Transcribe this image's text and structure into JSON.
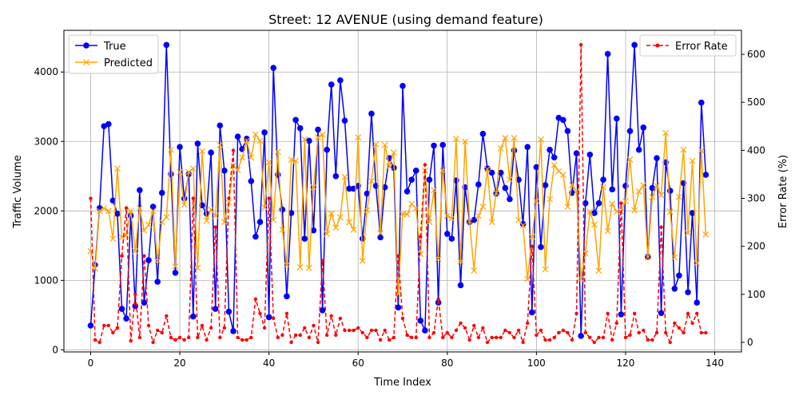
{
  "chart_data": {
    "type": "line",
    "title": "Street: 12 AVENUE (using demand feature)",
    "xlabel": "Time Index",
    "ylabel": "Traffic Volume",
    "y2label": "Error Rate (%)",
    "xlim": [
      -6,
      146
    ],
    "ylim": [
      -30,
      4600
    ],
    "y2lim": [
      -20,
      650
    ],
    "xticks": [
      0,
      20,
      40,
      60,
      80,
      100,
      120,
      140
    ],
    "yticks": [
      0,
      1000,
      2000,
      3000,
      4000
    ],
    "y2ticks": [
      0,
      100,
      200,
      300,
      400,
      500,
      600
    ],
    "grid": true,
    "legend_left_placement": "upper left",
    "legend_right_placement": "upper right",
    "series": [
      {
        "name": "True",
        "axis": "left",
        "color": "#0000ff",
        "marker": "circle",
        "values": [
          350,
          1220,
          2040,
          3220,
          3250,
          2150,
          1960,
          590,
          450,
          1930,
          630,
          2300,
          680,
          1290,
          2060,
          980,
          2260,
          4390,
          2530,
          1110,
          2920,
          2180,
          2530,
          480,
          2970,
          2080,
          1960,
          2840,
          590,
          3230,
          2580,
          550,
          270,
          3070,
          2890,
          3040,
          2430,
          1630,
          1840,
          3130,
          470,
          4060,
          2520,
          2020,
          770,
          1970,
          3310,
          3190,
          1600,
          3010,
          1720,
          3170,
          570,
          2880,
          3820,
          2500,
          3880,
          3300,
          2320,
          2320,
          2360,
          1600,
          2250,
          3400,
          2360,
          1620,
          2340,
          2760,
          2620,
          610,
          3800,
          2280,
          2450,
          2580,
          420,
          280,
          2450,
          2940,
          680,
          2950,
          1670,
          1600,
          2440,
          930,
          2340,
          1840,
          1870,
          2380,
          3110,
          2610,
          2550,
          2250,
          2550,
          2330,
          2170,
          2870,
          2450,
          1810,
          2920,
          540,
          2630,
          1480,
          2370,
          2880,
          2770,
          3340,
          3310,
          3150,
          2260,
          2830,
          200,
          2110,
          2810,
          1970,
          2110,
          2450,
          4260,
          2310,
          3330,
          510,
          2360,
          3150,
          4390,
          2880,
          3200,
          1340,
          2330,
          2760,
          530,
          2700,
          2290,
          880,
          1070,
          2400,
          830,
          1970,
          680,
          3560,
          2520
        ]
      },
      {
        "name": "Predicted",
        "axis": "left",
        "color": "#ffa500",
        "marker": "x",
        "values": [
          1420,
          1170,
          2000,
          2040,
          2000,
          1600,
          2610,
          1620,
          1650,
          2000,
          1420,
          2040,
          1720,
          1800,
          2000,
          1280,
          1840,
          1910,
          2880,
          1200,
          2560,
          2090,
          2560,
          2610,
          1180,
          2860,
          1860,
          2020,
          1930,
          2950,
          1840,
          2120,
          2650,
          2590,
          2770,
          3010,
          2770,
          3100,
          3010,
          2050,
          2700,
          1870,
          2850,
          1730,
          1220,
          2740,
          2720,
          1190,
          3030,
          1180,
          2340,
          3060,
          3100,
          1670,
          1960,
          1760,
          1910,
          2490,
          1840,
          1730,
          3060,
          1280,
          2010,
          2430,
          2960,
          1680,
          2950,
          2640,
          2840,
          800,
          1960,
          1950,
          2100,
          2040,
          1380,
          2580,
          1840,
          2300,
          1310,
          2580,
          1930,
          1890,
          3040,
          1270,
          3000,
          1850,
          1140,
          1930,
          2060,
          2600,
          1840,
          2260,
          2900,
          3050,
          2450,
          3050,
          1870,
          1790,
          1020,
          1630,
          2140,
          3030,
          1160,
          2170,
          2660,
          2570,
          2520,
          2060,
          2370,
          2280,
          1020,
          1390,
          1990,
          1800,
          1140,
          2340,
          1710,
          2100,
          1990,
          1990,
          2140,
          2740,
          2010,
          2280,
          2370,
          1330,
          2200,
          2360,
          2230,
          3120,
          1990,
          1330,
          2200,
          2880,
          1680,
          2720,
          1250,
          2870,
          1660
        ]
      },
      {
        "name": "Error Rate",
        "axis": "right",
        "color": "#ff0000",
        "marker": "circle",
        "style": "dashed",
        "values": [
          300,
          5,
          0,
          35,
          35,
          20,
          30,
          180,
          280,
          3,
          100,
          10,
          180,
          35,
          0,
          25,
          20,
          55,
          10,
          5,
          10,
          5,
          10,
          300,
          10,
          35,
          5,
          30,
          240,
          10,
          30,
          300,
          400,
          10,
          5,
          5,
          10,
          90,
          60,
          30,
          300,
          50,
          10,
          15,
          60,
          0,
          15,
          15,
          30,
          10,
          35,
          0,
          170,
          15,
          55,
          15,
          50,
          25,
          25,
          25,
          30,
          20,
          10,
          25,
          25,
          5,
          25,
          5,
          10,
          180,
          50,
          15,
          10,
          10,
          220,
          370,
          10,
          20,
          90,
          10,
          20,
          10,
          25,
          40,
          30,
          5,
          35,
          10,
          30,
          0,
          10,
          10,
          10,
          25,
          20,
          10,
          25,
          0,
          40,
          200,
          15,
          25,
          5,
          5,
          10,
          20,
          25,
          20,
          5,
          60,
          620,
          20,
          10,
          0,
          10,
          10,
          60,
          5,
          40,
          290,
          10,
          15,
          60,
          20,
          25,
          5,
          5,
          20,
          240,
          20,
          0,
          40,
          30,
          20,
          60,
          40,
          60,
          20,
          20
        ]
      }
    ]
  }
}
